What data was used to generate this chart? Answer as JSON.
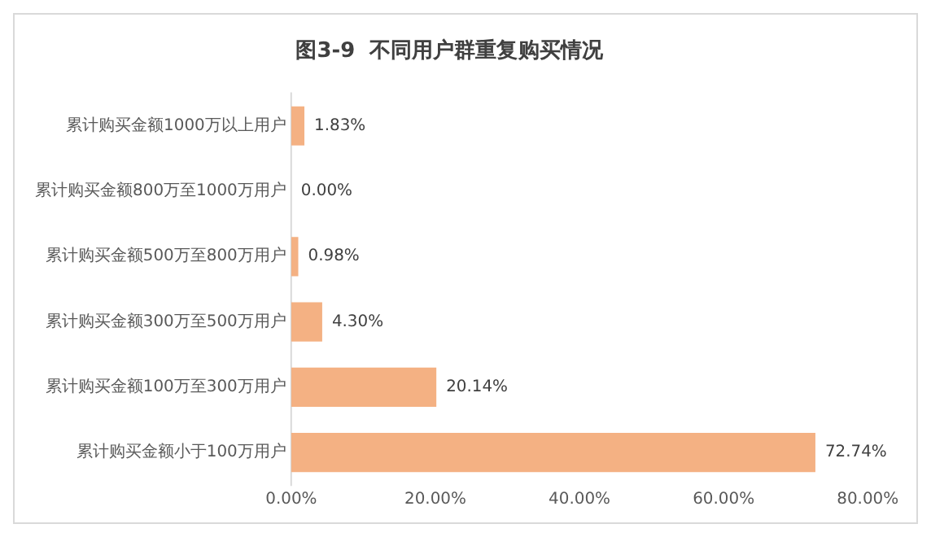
{
  "chart_data": {
    "type": "bar",
    "orientation": "horizontal",
    "title": "图3-9  不同用户群重复购买情况",
    "categories": [
      "累计购买金额1000万以上用户",
      "累计购买金额800万至1000万用户",
      "累计购买金额500万至800万用户",
      "累计购买金额300万至500万用户",
      "累计购买金额100万至300万用户",
      "累计购买金额小于100万用户"
    ],
    "values": [
      1.83,
      0,
      0.98,
      4.3,
      20.14,
      72.74
    ],
    "value_labels": [
      "1.83%",
      "0.00%",
      "0.98%",
      "4.30%",
      "20.14%",
      "72.74%"
    ],
    "color": "#f4b183",
    "xlim": [
      0,
      80
    ],
    "xticks": [
      {
        "value": 0,
        "label": "0.00%"
      },
      {
        "value": 20,
        "label": "20.00%"
      },
      {
        "value": 40,
        "label": "40.00%"
      },
      {
        "value": 60,
        "label": "60.00%"
      },
      {
        "value": 80,
        "label": "80.00%"
      }
    ],
    "grid": false,
    "legend": false
  }
}
